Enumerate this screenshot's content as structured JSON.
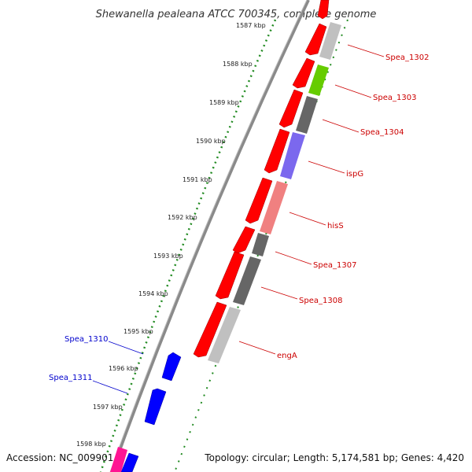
{
  "title": "Shewanella pealeana ATCC 700345, complete genome",
  "footer": {
    "accession": "Accession: NC_009901",
    "summary": "Topology: circular; Length: 5,174,581 bp; Genes: 4,420"
  },
  "ticks": [
    "1587 kbp",
    "1588 kbp",
    "1589 kbp",
    "1590 kbp",
    "1591 kbp",
    "1592 kbp",
    "1593 kbp",
    "1594 kbp",
    "1595 kbp",
    "1596 kbp",
    "1597 kbp",
    "1598 kbp"
  ],
  "right_labels": [
    "Spea_1302",
    "Spea_1303",
    "Spea_1304",
    "ispG",
    "hisS",
    "Spea_1307",
    "Spea_1308",
    "engA"
  ],
  "left_labels": [
    "Spea_1310",
    "Spea_1311"
  ],
  "colors": {
    "forward_gene": "#ff0000",
    "reverse_gene": "#0000ff",
    "backbone": "#888888",
    "tick_dots": "#228b22",
    "label_red": "#cc0000",
    "label_blue": "#0000cc",
    "cog_gray": "#666666",
    "cog_lightgray": "#c0c0c0",
    "cog_green": "#66cc00",
    "cog_purple": "#7b68ee",
    "cog_pink": "#f08080",
    "cog_magenta": "#ff1493"
  }
}
